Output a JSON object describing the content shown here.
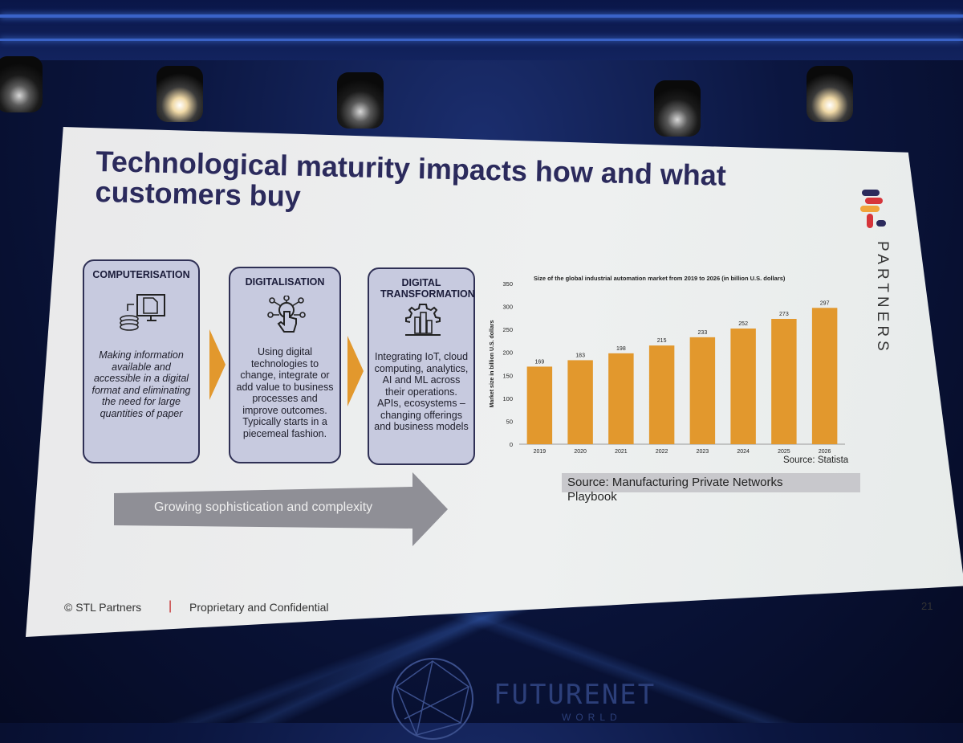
{
  "slide": {
    "title": "Technological maturity impacts how and what customers buy",
    "logo": {
      "text": "STL",
      "colors": [
        "#2b2a5c",
        "#d6353a",
        "#f0a43a"
      ]
    },
    "brand_word": "PARTNERS",
    "stages": [
      {
        "heading": "COMPUTERISATION",
        "icon": "computer-documents-icon",
        "text": "Making information available and accessible in a digital format and eliminating the need for large quantities of paper"
      },
      {
        "heading": "DIGITALISATION",
        "icon": "touch-network-icon",
        "text": "Using digital technologies to change, integrate or add value to business processes and improve outcomes. Typically starts in a piecemeal fashion."
      },
      {
        "heading": "DIGITAL TRANSFORMATION",
        "icon": "gear-city-icon",
        "text": "Integrating IoT, cloud computing, analytics, AI and ML across their operations. APIs, ecosystems – changing offerings and business models"
      }
    ],
    "progress_arrow": "Growing sophistication and complexity",
    "chart_title": "Size of the global industrial automation market from 2019 to 2026 (in billion U.S. dollars)",
    "chart_source": "Source: Statista",
    "playbook_source": "Source: Manufacturing Private Networks Playbook",
    "footer_copyright": "© STL Partners",
    "footer_separator": "|",
    "footer_confidential": "Proprietary and Confidential",
    "page_number": "21"
  },
  "venue": {
    "name": "FUTURENET",
    "sub": "WORLD"
  },
  "colors": {
    "title": "#2b2a5c",
    "bar": "#e2982d",
    "box_fill": "#c7cadf",
    "box_border": "#2f3055"
  },
  "chart_data": {
    "type": "bar",
    "title": "Size of the global industrial automation market from 2019 to 2026 (in billion U.S. dollars)",
    "xlabel": "",
    "ylabel": "Market size in billion U.S. dollars",
    "categories": [
      "2019",
      "2020",
      "2021",
      "2022",
      "2023",
      "2024",
      "2025",
      "2026"
    ],
    "values": [
      169,
      183,
      198,
      215,
      233,
      252,
      273,
      297
    ],
    "yticks": [
      0,
      50,
      100,
      150,
      200,
      250,
      300,
      350
    ],
    "ylim": [
      0,
      350
    ],
    "data_labels": true,
    "grid": false,
    "legend": "none"
  }
}
